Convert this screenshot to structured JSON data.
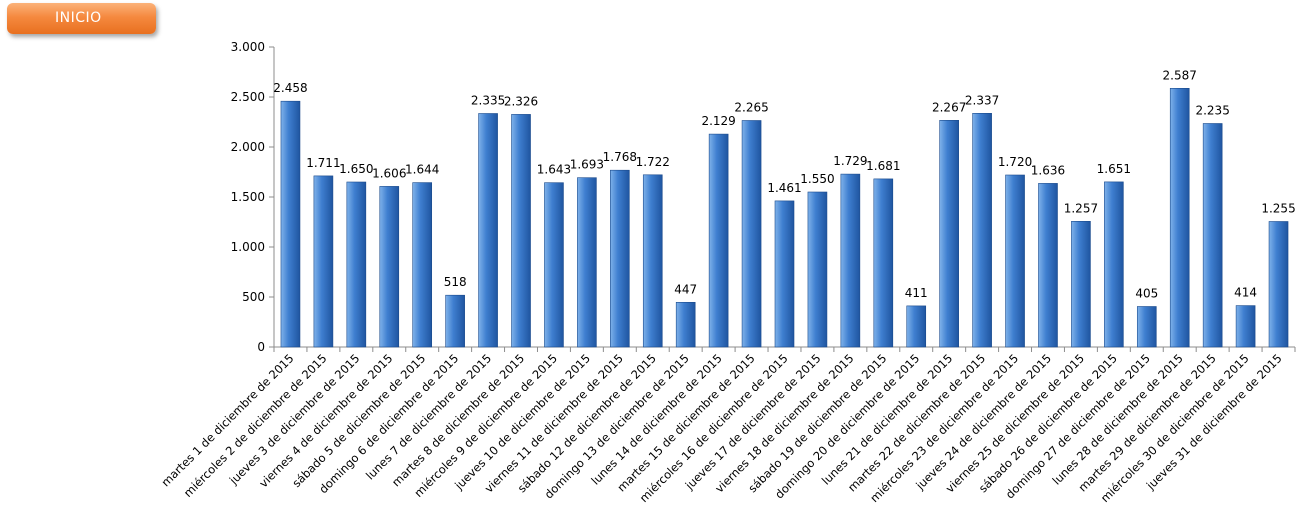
{
  "button": {
    "label": "INICIO"
  },
  "colors": {
    "bar_light": "#7fb2ea",
    "bar_mid": "#3f7fd0",
    "bar_dark": "#1f55a0",
    "axis": "#8c8c8c"
  },
  "chart_data": {
    "type": "bar",
    "title": "",
    "xlabel": "",
    "ylabel": "",
    "ylim": [
      0,
      3000
    ],
    "yticks": [
      0,
      500,
      1000,
      1500,
      2000,
      2500,
      3000
    ],
    "ytick_labels": [
      "0",
      "500",
      "1.000",
      "1.500",
      "2.000",
      "2.500",
      "3.000"
    ],
    "grid": false,
    "legend": "none",
    "categories": [
      "martes 1 de diciembre de 2015",
      "miércoles 2 de diciembre de 2015",
      "jueves 3 de diciembre de 2015",
      "viernes 4 de diciembre de 2015",
      "sábado 5 de diciembre de 2015",
      "domingo 6 de diciembre de 2015",
      "lunes 7 de diciembre de 2015",
      "martes 8 de diciembre de 2015",
      "miércoles 9 de diciembre de 2015",
      "jueves 10 de diciembre de 2015",
      "viernes 11 de diciembre de 2015",
      "sábado 12 de diciembre de 2015",
      "domingo 13 de diciembre de 2015",
      "lunes 14 de diciembre de 2015",
      "martes 15 de diciembre de 2015",
      "miércoles 16 de diciembre de 2015",
      "jueves 17 de diciembre de 2015",
      "viernes 18 de diciembre de 2015",
      "sábado 19 de diciembre de 2015",
      "domingo 20 de diciembre de 2015",
      "lunes 21 de diciembre de 2015",
      "martes 22 de diciembre de 2015",
      "miércoles 23 de diciembre de 2015",
      "jueves 24 de diciembre de 2015",
      "viernes 25 de diciembre de 2015",
      "sábado 26 de diciembre de 2015",
      "domingo 27 de diciembre de 2015",
      "lunes 28 de diciembre de 2015",
      "martes 29 de diciembre de 2015",
      "miércoles 30 de diciembre de 2015",
      "jueves 31 de diciembre de 2015"
    ],
    "values": [
      2458,
      1711,
      1650,
      1606,
      1644,
      518,
      2335,
      2326,
      1643,
      1693,
      1768,
      1722,
      447,
      2129,
      2265,
      1461,
      1550,
      1729,
      1681,
      411,
      2267,
      2337,
      1720,
      1636,
      1257,
      1651,
      405,
      2587,
      2235,
      414,
      1255
    ],
    "value_labels": [
      "2.458",
      "1.711",
      "1.650",
      "1.606",
      "1.644",
      "518",
      "2.335",
      "2.326",
      "1.643",
      "1.693",
      "1.768",
      "1.722",
      "447",
      "2.129",
      "2.265",
      "1.461",
      "1.550",
      "1.729",
      "1.681",
      "411",
      "2.267",
      "2.337",
      "1.720",
      "1.636",
      "1.257",
      "1.651",
      "405",
      "2.587",
      "2.235",
      "414",
      "1.255"
    ]
  }
}
